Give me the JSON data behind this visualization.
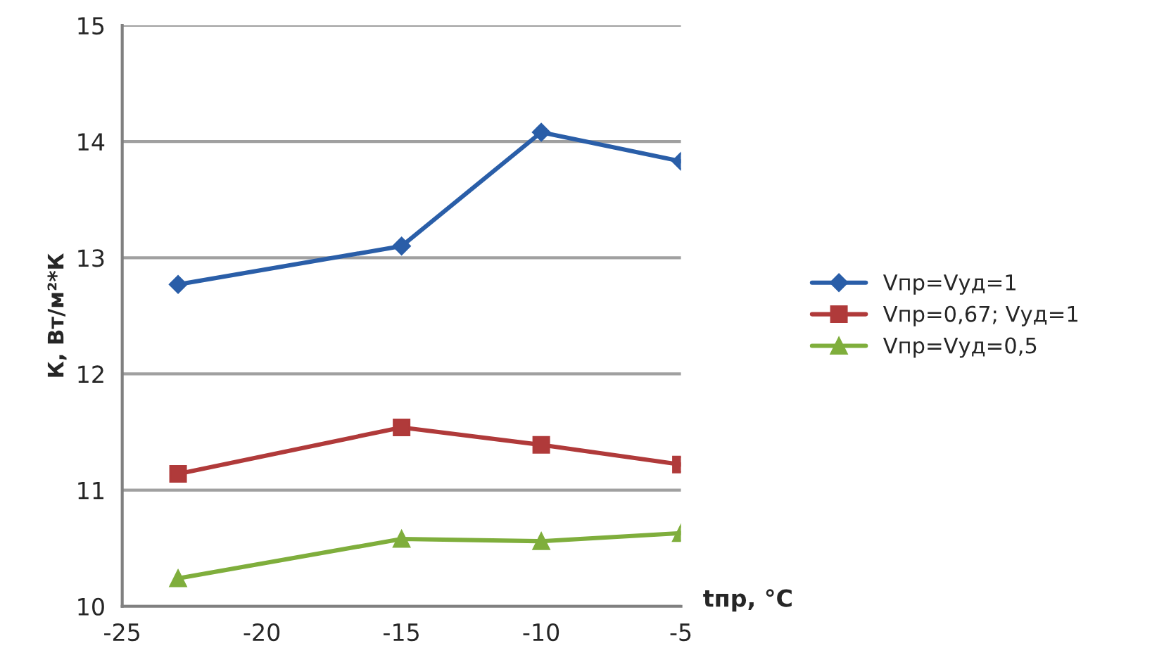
{
  "chart_data": {
    "type": "line",
    "xlabel": "tпр, °C",
    "ylabel": "К, Вт/м²*К",
    "x": [
      -23,
      -15,
      -10,
      -5
    ],
    "series": [
      {
        "name": "Vпр=Vуд=1",
        "color": "#2a5ea8",
        "marker": "diamond",
        "values": [
          12.77,
          13.1,
          14.08,
          13.83
        ]
      },
      {
        "name": "Vпр=0,67; Vуд=1",
        "color": "#b03a3a",
        "marker": "square",
        "values": [
          11.14,
          11.54,
          11.39,
          11.22
        ]
      },
      {
        "name": "Vпр=Vуд=0,5",
        "color": "#7fae3c",
        "marker": "triangle",
        "values": [
          10.24,
          10.58,
          10.56,
          10.63
        ]
      }
    ],
    "xlim": [
      -25,
      -5
    ],
    "xticks": [
      -25,
      -20,
      -15,
      -10,
      -5
    ],
    "ylim": [
      10,
      15
    ],
    "yticks": [
      10,
      11,
      12,
      13,
      14,
      15
    ],
    "grid": "y",
    "legend": "right",
    "line_style": "solid"
  }
}
